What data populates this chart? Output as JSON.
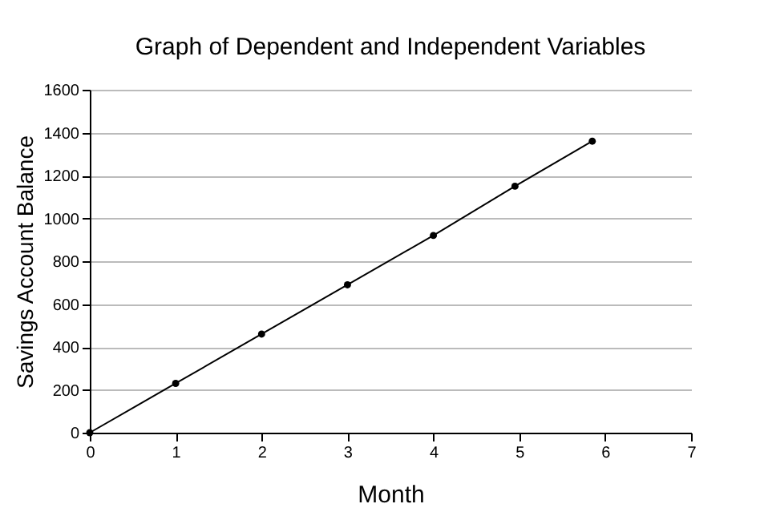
{
  "chart_data": {
    "type": "line",
    "title": "Graph of Dependent and Independent Variables",
    "xlabel": "Month",
    "ylabel": "Savings Account Balance",
    "x": [
      0,
      1,
      2,
      3,
      4,
      4.95,
      5.85
    ],
    "series": [
      {
        "color": "#000000",
        "values": [
          0,
          230,
          460,
          690,
          920,
          1150,
          1360
        ]
      }
    ],
    "xlim": [
      0,
      7
    ],
    "xticks": [
      0,
      1,
      2,
      3,
      4,
      5,
      6,
      7
    ],
    "ylim": [
      0,
      1600
    ],
    "yticks": [
      0,
      200,
      400,
      600,
      800,
      1000,
      1200,
      1400,
      1600
    ],
    "grid": "y",
    "marker": "circle",
    "line_style": "solid"
  }
}
